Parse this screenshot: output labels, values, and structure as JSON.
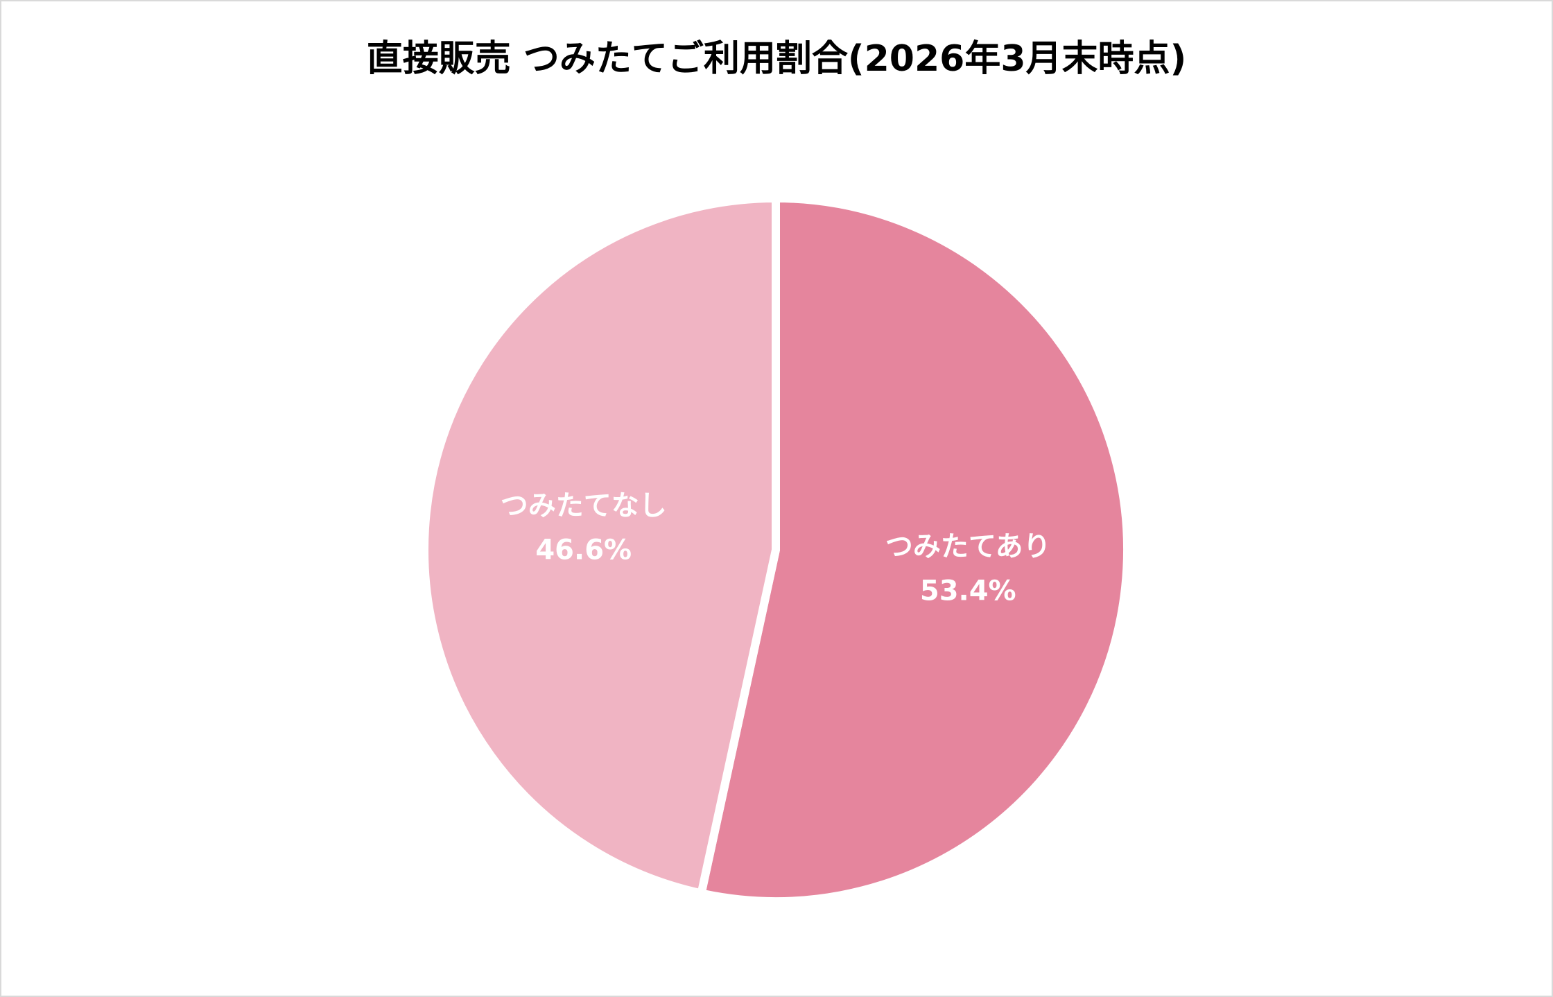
{
  "chart_data": {
    "type": "pie",
    "title": "直接販売 つみたてご利用割合(2026年3月末時点)",
    "categories": [
      "つみたてあり",
      "つみたてなし"
    ],
    "values": [
      53.4,
      46.6
    ],
    "value_labels": [
      "53.4%",
      "46.6%"
    ],
    "colors": [
      "#e5859d",
      "#f0b4c3"
    ]
  }
}
